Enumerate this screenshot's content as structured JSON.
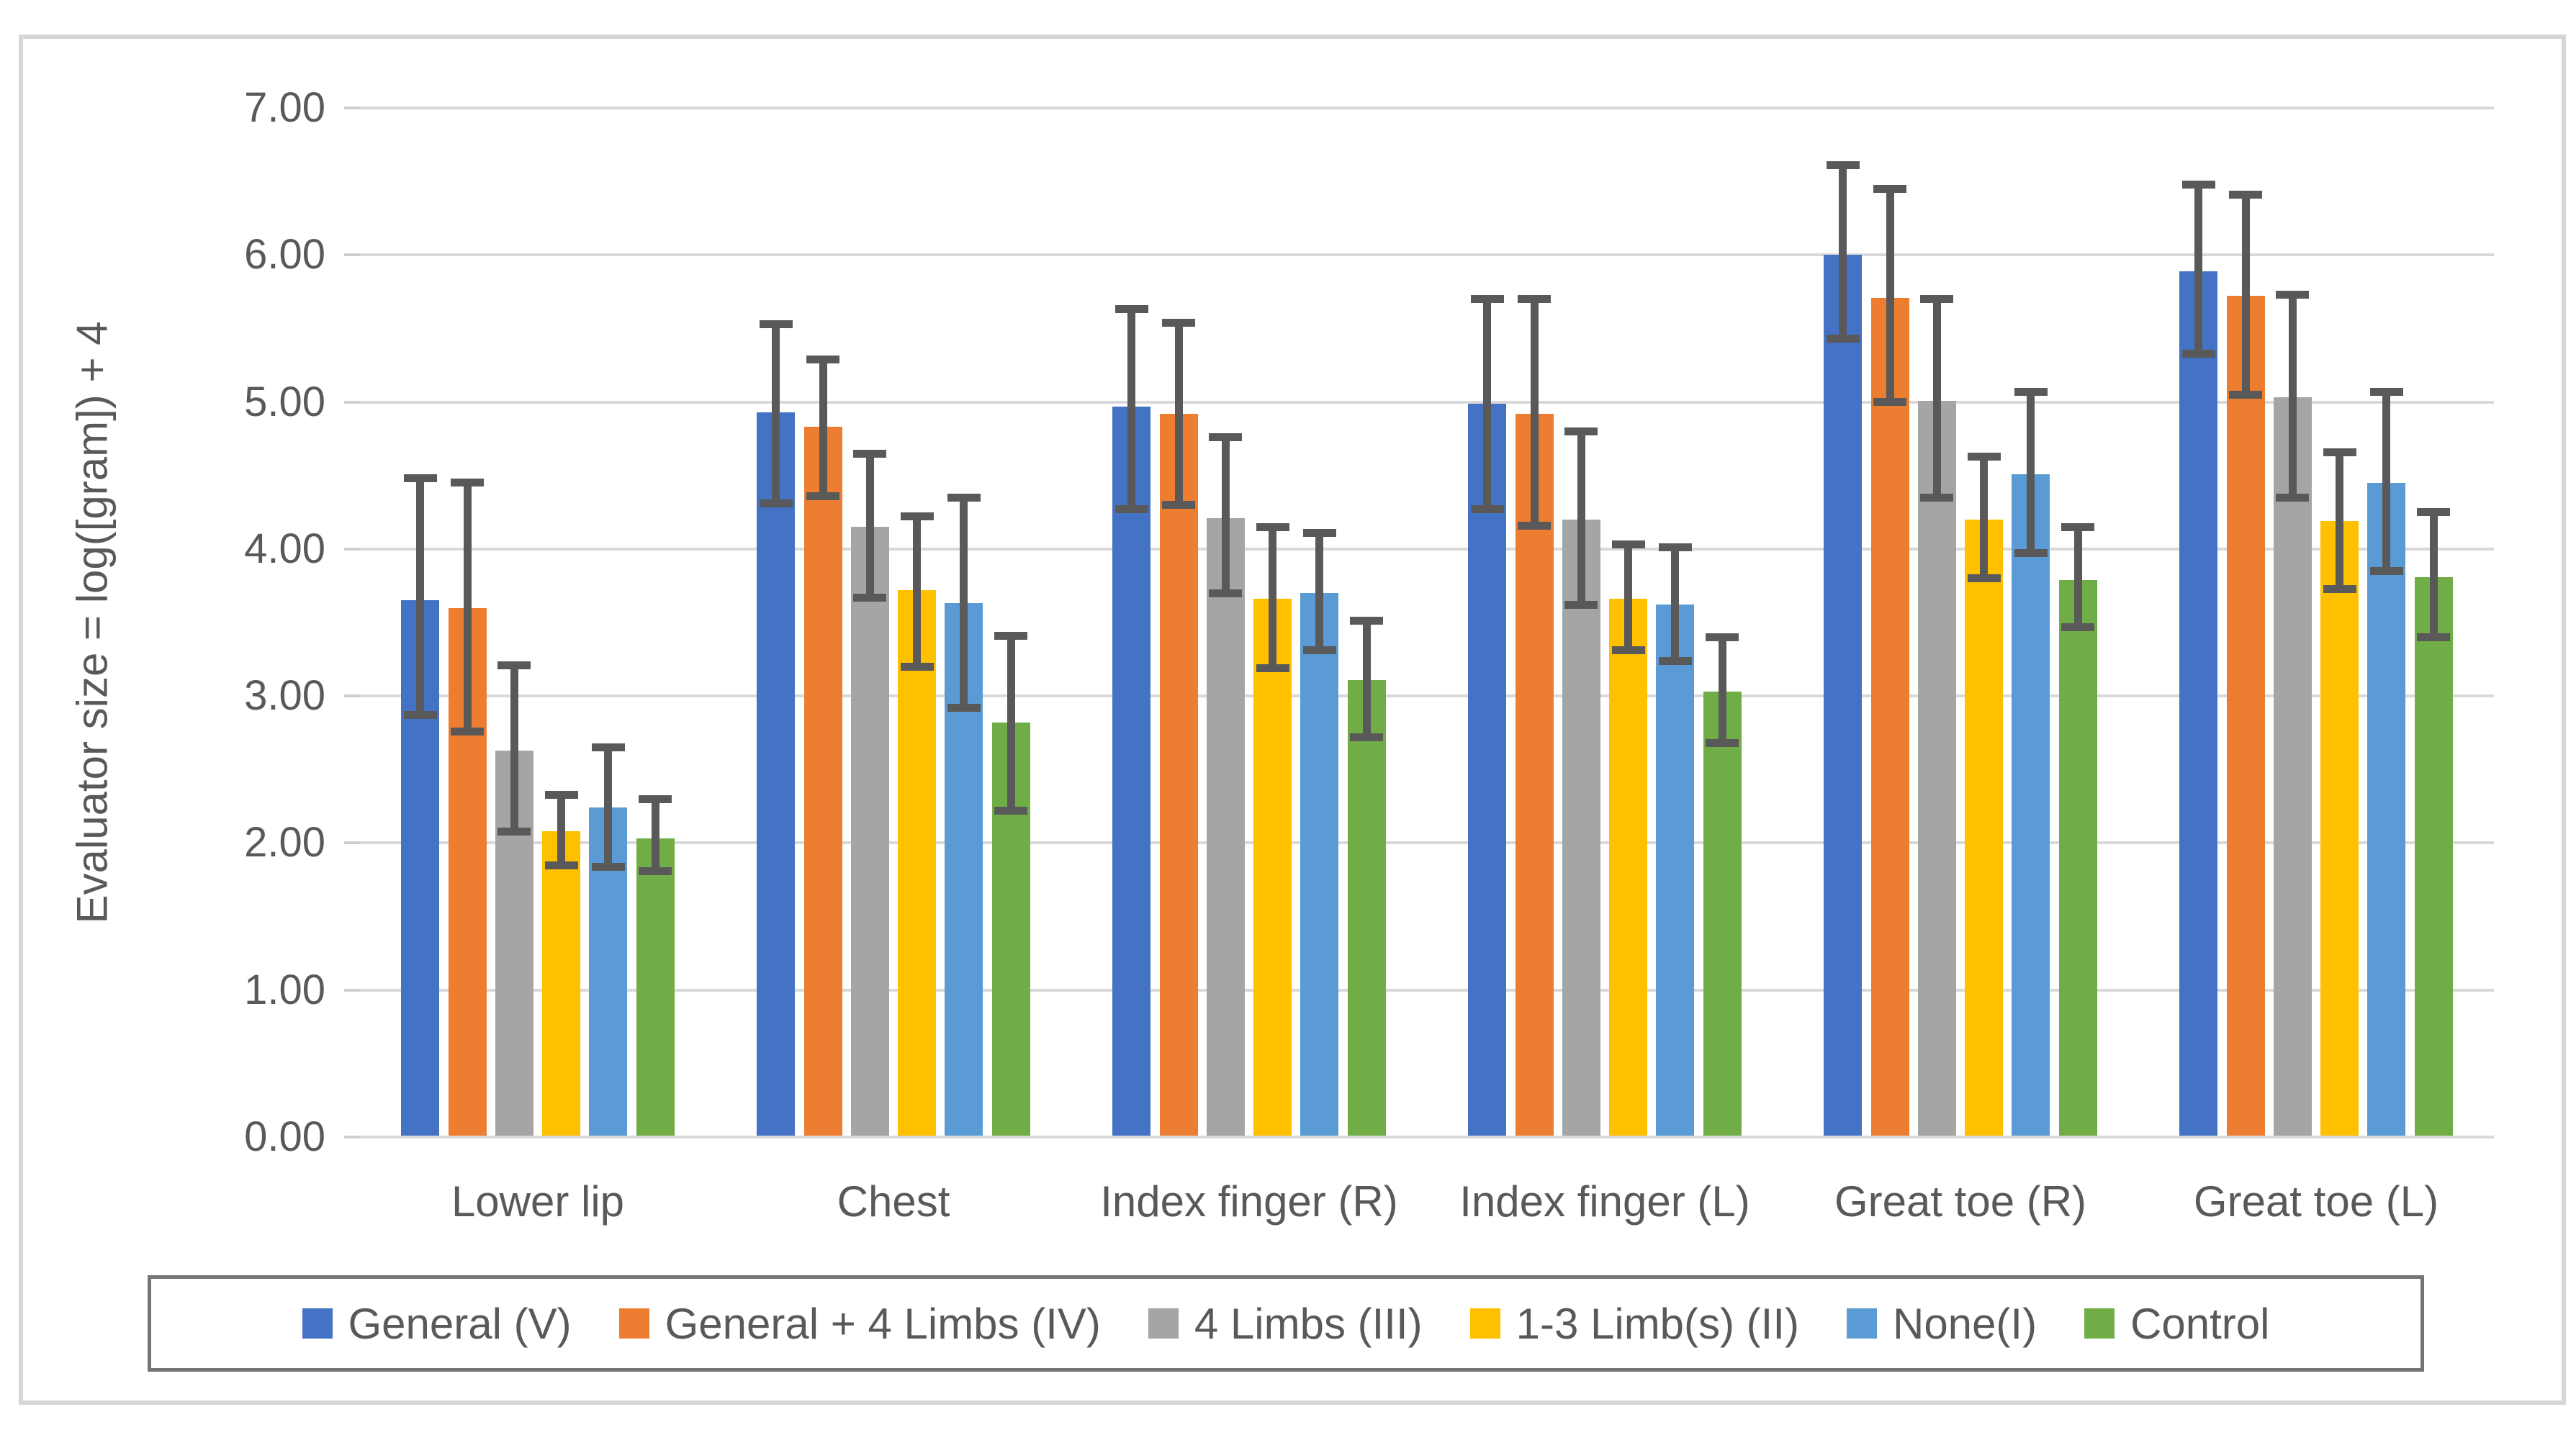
{
  "chart_data": {
    "type": "bar",
    "title": "",
    "ylabel": "Evaluator size = log([gram]) + 4",
    "xlabel": "",
    "ylim": [
      0,
      7
    ],
    "ytick_step": 1,
    "ytick_labels": [
      "0.00",
      "1.00",
      "2.00",
      "3.00",
      "4.00",
      "5.00",
      "6.00",
      "7.00"
    ],
    "grid": true,
    "gridline_color": "#d9d9d9",
    "error_bar_color": "#595959",
    "legend_position": "bottom",
    "categories": [
      "Lower lip",
      "Chest",
      "Index finger (R)",
      "Index finger (L)",
      "Great toe (R)",
      "Great toe (L)"
    ],
    "series": [
      {
        "name": "General (V)",
        "color": "#4472C4",
        "values": [
          3.65,
          4.93,
          4.97,
          4.99,
          6.0,
          5.89
        ],
        "err_up": [
          0.83,
          0.6,
          0.66,
          0.71,
          0.61,
          0.59
        ],
        "err_down": [
          0.78,
          0.62,
          0.7,
          0.72,
          0.57,
          0.56
        ]
      },
      {
        "name": "General + 4 Limbs (IV)",
        "color": "#ED7D31",
        "values": [
          3.6,
          4.83,
          4.92,
          4.92,
          5.71,
          5.72
        ],
        "err_up": [
          0.85,
          0.46,
          0.62,
          0.78,
          0.74,
          0.69
        ],
        "err_down": [
          0.84,
          0.47,
          0.62,
          0.76,
          0.71,
          0.67
        ]
      },
      {
        "name": "4 Limbs (III)",
        "color": "#A5A5A5",
        "values": [
          2.63,
          4.15,
          4.21,
          4.2,
          5.01,
          5.03
        ],
        "err_up": [
          0.58,
          0.5,
          0.55,
          0.6,
          0.69,
          0.7
        ],
        "err_down": [
          0.55,
          0.48,
          0.51,
          0.58,
          0.66,
          0.68
        ]
      },
      {
        "name": "1-3 Limb(s) (II)",
        "color": "#FFC000",
        "values": [
          2.08,
          3.72,
          3.66,
          3.66,
          4.2,
          4.19
        ],
        "err_up": [
          0.25,
          0.5,
          0.49,
          0.37,
          0.43,
          0.47
        ],
        "err_down": [
          0.23,
          0.52,
          0.47,
          0.35,
          0.4,
          0.46
        ]
      },
      {
        "name": "None(I)",
        "color": "#5B9BD5",
        "values": [
          2.24,
          3.63,
          3.7,
          3.62,
          4.51,
          4.45
        ],
        "err_up": [
          0.41,
          0.72,
          0.41,
          0.39,
          0.56,
          0.62
        ],
        "err_down": [
          0.4,
          0.71,
          0.39,
          0.38,
          0.54,
          0.6
        ]
      },
      {
        "name": "Control",
        "color": "#70AD47",
        "values": [
          2.03,
          2.82,
          3.11,
          3.03,
          3.79,
          3.81
        ],
        "err_up": [
          0.27,
          0.59,
          0.4,
          0.37,
          0.36,
          0.44
        ],
        "err_down": [
          0.22,
          0.6,
          0.39,
          0.35,
          0.32,
          0.41
        ]
      }
    ]
  }
}
